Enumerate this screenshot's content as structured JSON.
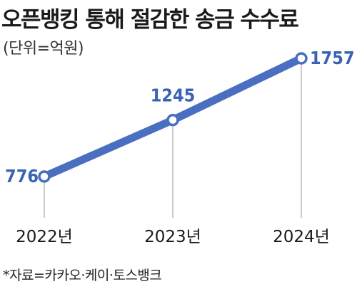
{
  "title": "오픈뱅킹 통해 절감한 송금 수수료",
  "unit_label": "(단위=억원)",
  "source": "*자료=카카오·케이·토스뱅크",
  "colors": {
    "line": "#4a6fc0",
    "label": "#3a63b5",
    "marker_fill": "#ffffff",
    "guide": "#9a9a9a"
  },
  "chart_data": {
    "type": "line",
    "title": "오픈뱅킹 통해 절감한 송금 수수료",
    "ylabel": "(단위=억원)",
    "categories": [
      "2022년",
      "2023년",
      "2024년"
    ],
    "values": [
      776,
      1245,
      1757
    ],
    "ylim": [
      500,
      1900
    ],
    "grid": false,
    "legend": "none"
  }
}
